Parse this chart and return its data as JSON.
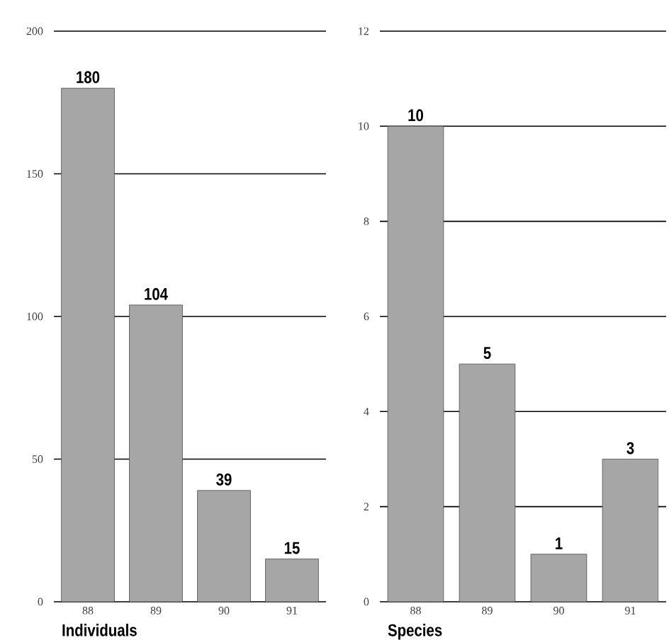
{
  "chart_data": [
    {
      "type": "bar",
      "categories": [
        "88",
        "89",
        "90",
        "91"
      ],
      "values": [
        180,
        104,
        39,
        15
      ],
      "color": "#a6a6a6",
      "xlabel": "Individuals",
      "ylim": [
        0,
        200
      ],
      "yticks": [
        0,
        50,
        100,
        150,
        200
      ],
      "grid": "y",
      "data_labels": true
    },
    {
      "type": "bar",
      "categories": [
        "88",
        "89",
        "90",
        "91"
      ],
      "values": [
        10,
        5,
        1,
        3
      ],
      "color": "#a6a6a6",
      "xlabel": "Species",
      "ylim": [
        0,
        12
      ],
      "yticks": [
        0,
        2,
        4,
        6,
        8,
        10,
        12
      ],
      "grid": "y",
      "data_labels": true
    }
  ]
}
